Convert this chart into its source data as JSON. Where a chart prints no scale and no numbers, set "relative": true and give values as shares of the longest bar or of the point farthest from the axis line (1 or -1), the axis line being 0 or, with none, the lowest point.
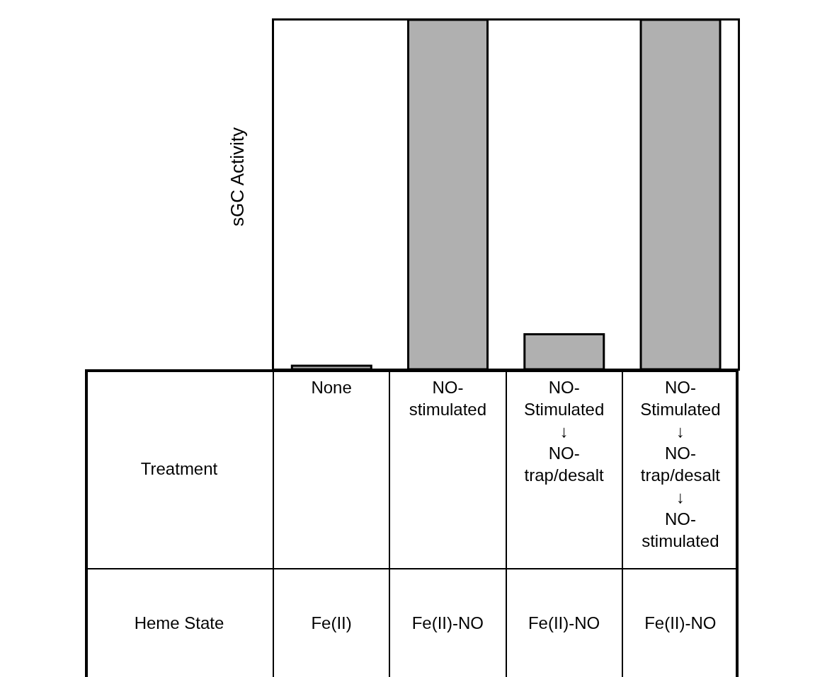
{
  "chart_data": {
    "type": "bar",
    "ylabel": "sGC Activity",
    "categories": [
      "None",
      "NO-\nstimulated",
      "NO-\nStimulated\n↓\nNO-\ntrap/desalt",
      "NO-\nStimulated\n↓\nNO-\ntrap/desalt\n↓\nNO-\nstimulated"
    ],
    "values": [
      0.01,
      1,
      0.1,
      1
    ],
    "color": "#b0b0b0",
    "relative": true,
    "annotations": [
      "Treatment",
      "Heme State",
      "Fe(II)",
      "Fe(II)-NO",
      "Fe(II)-NO",
      "Fe(II)-NO"
    ]
  }
}
